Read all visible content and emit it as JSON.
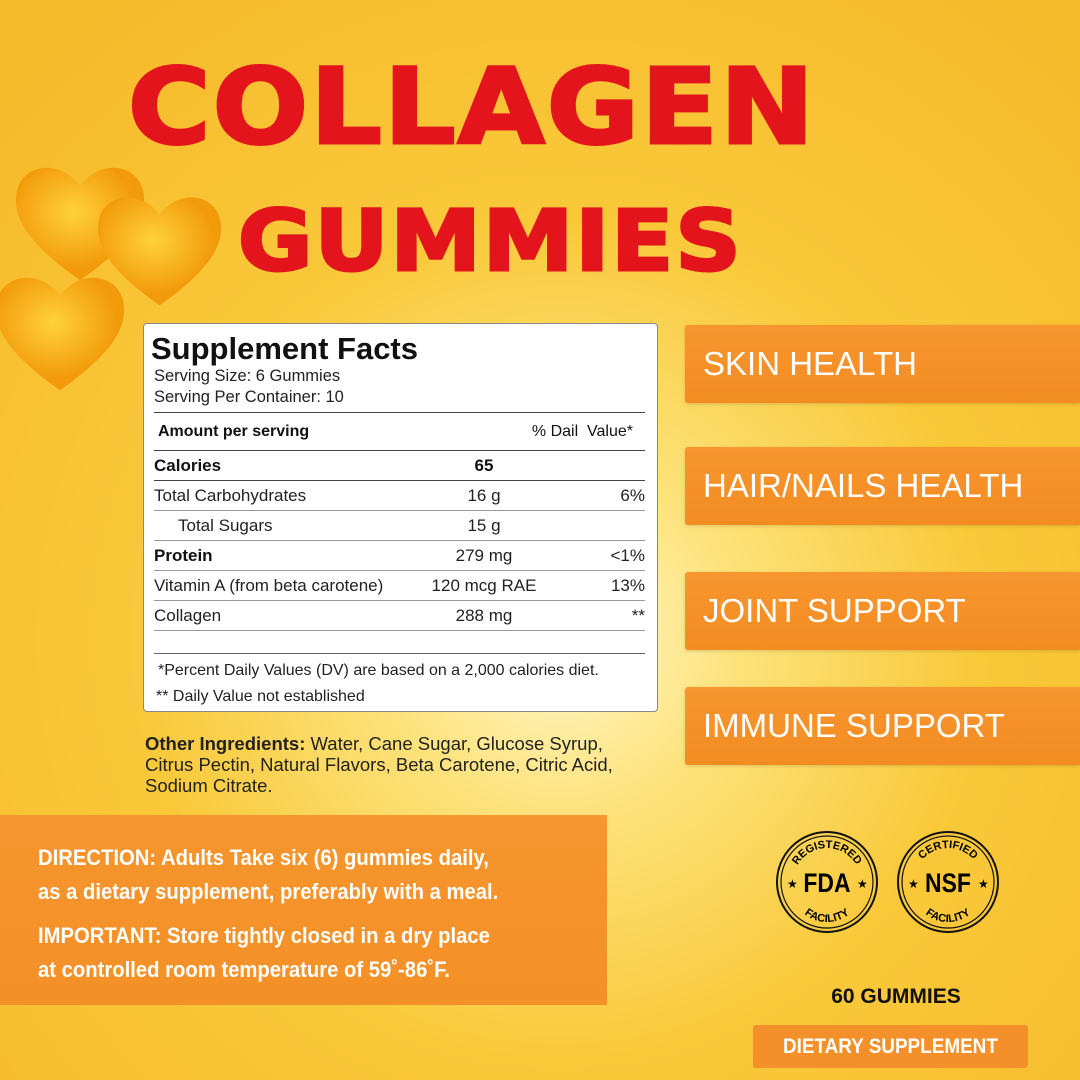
{
  "title": {
    "line1": "COLLAGEN",
    "line2": "GUMMIES",
    "color": "#e3141c"
  },
  "facts": {
    "heading": "Supplement Facts",
    "serving_size": "Serving Size: 6 Gummies",
    "servings": "Serving Per Container: 10",
    "header": {
      "amount": "Amount per serving",
      "dv": "% Dail  Value*"
    },
    "rows": [
      {
        "name": "Calories",
        "amount": "65",
        "dv": "",
        "bold": true
      },
      {
        "name": "Total Carbohydrates",
        "amount": "16 g",
        "dv": "6%"
      },
      {
        "name": "Total Sugars",
        "amount": "15 g",
        "dv": ""
      },
      {
        "name": "Protein",
        "amount": "279 mg",
        "dv": "<1%",
        "bold": true
      },
      {
        "name": "Vitamin A (from beta carotene)",
        "amount": "120 mcg RAE",
        "dv": "13%"
      },
      {
        "name": "Collagen",
        "amount": "288 mg",
        "dv": "**"
      }
    ],
    "footnote1": "*Percent Daily Values (DV) are based on a 2,000 calories diet.",
    "footnote2": "** Daily Value not established"
  },
  "ingredients": {
    "label": "Other Ingredients:",
    "text": " Water, Cane Sugar, Glucose Syrup, Citrus Pectin, Natural Flavors, Beta Carotene, Citric Acid, Sodium Citrate."
  },
  "benefits": [
    "SKIN HEALTH",
    "HAIR/NAILS HEALTH",
    "JOINT SUPPORT",
    "IMMUNE SUPPORT"
  ],
  "directions": {
    "line1": "DIRECTION: Adults  Take six (6) gummies daily,",
    "line2": "as a dietary supplement, preferably with a meal.",
    "line3": "IMPORTANT: Store tightly closed in a dry place",
    "line4": "at controlled room temperature  of 59˚-86˚F."
  },
  "badges": [
    {
      "top": "REGISTERED",
      "center": "FDA",
      "bottom": "FACILITY"
    },
    {
      "top": "CERTIFIED",
      "center": "NSF",
      "bottom": "FACILITY"
    }
  ],
  "count": "60 GUMMIES",
  "product_type": "DIETARY SUPPLEMENT",
  "colors": {
    "orange": "#f3902a",
    "background": "#f9c93a"
  }
}
